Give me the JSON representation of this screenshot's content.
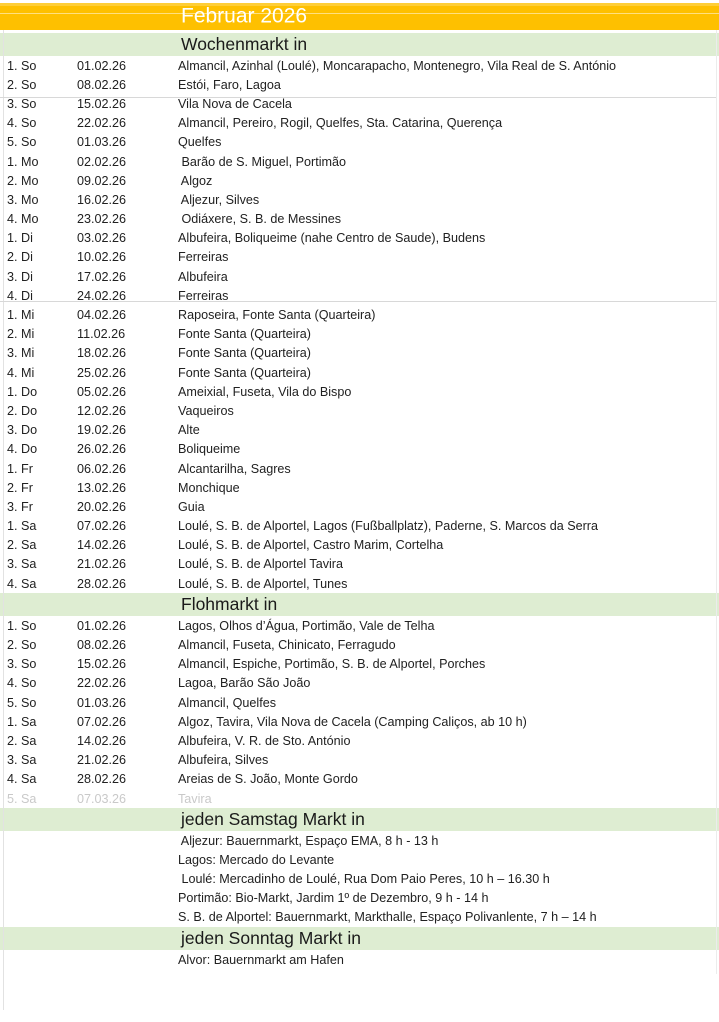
{
  "title": "Februar 2026",
  "colors": {
    "title_bg": "#FEC000",
    "title_text": "#FFFFFF",
    "section_bg": "#DEEDD2",
    "row_text": "#212121",
    "muted_text": "#C9C9C9",
    "gridline": "#D8D8D8"
  },
  "sections": [
    {
      "id": "wochenmarkt",
      "label": "Wochenmarkt in",
      "rows": [
        {
          "day": "1. So",
          "date": "01.02.26",
          "places": "Almancil, Azinhal (Loulé), Moncarapacho, Montenegro, Vila Real de S. António"
        },
        {
          "day": "2. So",
          "date": "08.02.26",
          "places": "Estói, Faro, Lagoa"
        },
        {
          "day": "3. So",
          "date": "15.02.26",
          "places": "Vila Nova de Cacela"
        },
        {
          "day": "4. So",
          "date": "22.02.26",
          "places": "Almancil, Pereiro, Rogil, Quelfes, Sta. Catarina, Querença"
        },
        {
          "day": "5. So",
          "date": "01.03.26",
          "places": "Quelfes"
        },
        {
          "day": "1. Mo",
          "date": "02.02.26",
          "places": " Barão de S. Miguel, Portimão"
        },
        {
          "day": "2. Mo",
          "date": "09.02.26",
          "places": " Algoz"
        },
        {
          "day": "3. Mo",
          "date": "16.02.26",
          "places": " Aljezur, Silves"
        },
        {
          "day": "4. Mo",
          "date": "23.02.26",
          "places": " Odiáxere, S. B. de Messines"
        },
        {
          "day": "1. Di",
          "date": "03.02.26",
          "places": "Albufeira, Boliqueime (nahe Centro de Saude), Budens"
        },
        {
          "day": "2. Di",
          "date": "10.02.26",
          "places": "Ferreiras"
        },
        {
          "day": "3. Di",
          "date": "17.02.26",
          "places": "Albufeira"
        },
        {
          "day": "4. Di",
          "date": "24.02.26",
          "places": "Ferreiras"
        },
        {
          "day": "1. Mi",
          "date": "04.02.26",
          "places": "Raposeira, Fonte Santa (Quarteira)"
        },
        {
          "day": "2. Mi",
          "date": "11.02.26",
          "places": "Fonte Santa (Quarteira)"
        },
        {
          "day": "3. Mi",
          "date": "18.02.26",
          "places": "Fonte Santa (Quarteira)"
        },
        {
          "day": "4. Mi",
          "date": "25.02.26",
          "places": "Fonte Santa (Quarteira)"
        },
        {
          "day": "1. Do",
          "date": "05.02.26",
          "places": "Ameixial, Fuseta, Vila do Bispo"
        },
        {
          "day": "2. Do",
          "date": "12.02.26",
          "places": "Vaqueiros"
        },
        {
          "day": "3. Do",
          "date": "19.02.26",
          "places": "Alte"
        },
        {
          "day": "4. Do",
          "date": "26.02.26",
          "places": "Boliqueime"
        },
        {
          "day": "1. Fr",
          "date": "06.02.26",
          "places": "Alcantarilha, Sagres"
        },
        {
          "day": "2. Fr",
          "date": "13.02.26",
          "places": "Monchique"
        },
        {
          "day": "3. Fr",
          "date": "20.02.26",
          "places": "Guia"
        },
        {
          "day": "1. Sa",
          "date": "07.02.26",
          "places": "Loulé, S. B. de Alportel, Lagos (Fußballplatz), Paderne, S. Marcos da Serra"
        },
        {
          "day": "2. Sa",
          "date": "14.02.26",
          "places": "Loulé, S. B. de Alportel, Castro Marim, Cortelha"
        },
        {
          "day": "3. Sa",
          "date": "21.02.26",
          "places": "Loulé, S. B. de Alportel Tavira"
        },
        {
          "day": "4. Sa",
          "date": "28.02.26",
          "places": "Loulé, S. B. de Alportel, Tunes"
        }
      ]
    },
    {
      "id": "flohmarkt",
      "label": "Flohmarkt in",
      "rows": [
        {
          "day": "1. So",
          "date": "01.02.26",
          "places": "Lagos, Olhos d’Água, Portimão, Vale de Telha"
        },
        {
          "day": "2. So",
          "date": "08.02.26",
          "places": "Almancil, Fuseta, Chinicato, Ferragudo"
        },
        {
          "day": "3. So",
          "date": "15.02.26",
          "places": "Almancil, Espiche, Portimão, S. B. de Alportel, Porches"
        },
        {
          "day": "4. So",
          "date": "22.02.26",
          "places": "Lagoa, Barão São João"
        },
        {
          "day": "5. So",
          "date": "01.03.26",
          "places": "Almancil, Quelfes"
        },
        {
          "day": "1. Sa",
          "date": "07.02.26",
          "places": "Algoz, Tavira, Vila Nova de Cacela (Camping Caliços, ab 10 h)"
        },
        {
          "day": "2. Sa",
          "date": "14.02.26",
          "places": "Albufeira, V. R. de Sto. António"
        },
        {
          "day": "3. Sa",
          "date": "21.02.26",
          "places": "Albufeira, Silves"
        },
        {
          "day": "4. Sa",
          "date": "28.02.26",
          "places": "Areias de S. João, Monte Gordo"
        },
        {
          "day": "5. Sa",
          "date": "07.03.26",
          "places": "Tavira",
          "muted": true
        }
      ]
    },
    {
      "id": "samstag",
      "label": "jeden Samstag Markt in",
      "rows": [
        {
          "places": " Aljezur: Bauernmarkt, Espaço EMA, 8 h - 13 h"
        },
        {
          "places": "Lagos: Mercado do Levante"
        },
        {
          "places": " Loulé: Mercadinho de Loulé, Rua Dom Paio Peres, 10 h – 16.30 h"
        },
        {
          "places": "Portimão: Bio-Markt, Jardim 1º de Dezembro, 9 h - 14 h"
        },
        {
          "places": "S. B. de Alportel: Bauernmarkt, Markthalle, Espaço Polivanlente, 7 h – 14 h"
        }
      ]
    },
    {
      "id": "sonntag",
      "label": "jeden Sonntag Markt in",
      "rows": [
        {
          "places": "Alvor: Bauernmarkt am Hafen"
        }
      ]
    }
  ]
}
